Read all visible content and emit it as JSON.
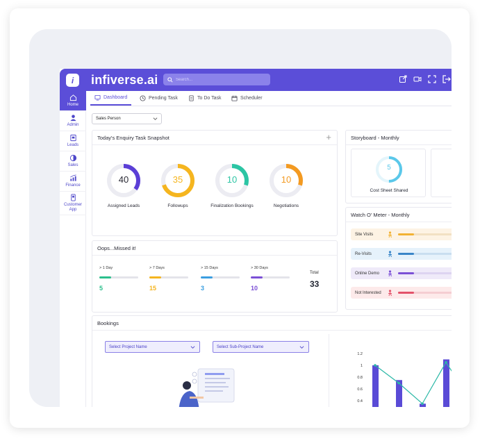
{
  "brand": {
    "name": "infiverse.ai",
    "logo_letter": "i"
  },
  "search": {
    "placeholder": "Search..."
  },
  "top_icons": [
    "external-link-icon",
    "video-icon",
    "expand-icon",
    "logout-icon"
  ],
  "sidebar": {
    "items": [
      {
        "label": "Home",
        "icon": "home-icon",
        "active": true
      },
      {
        "label": "Admin",
        "icon": "admin-icon"
      },
      {
        "label": "Leads",
        "icon": "leads-icon"
      },
      {
        "label": "Sales",
        "icon": "pie-icon"
      },
      {
        "label": "Finance",
        "icon": "finance-icon"
      },
      {
        "label": "Customer App",
        "icon": "phone-icon"
      }
    ]
  },
  "tabs": [
    {
      "label": "Dashboard",
      "active": true
    },
    {
      "label": "Pending Task"
    },
    {
      "label": "To Do Task"
    },
    {
      "label": "Scheduler"
    }
  ],
  "filter": {
    "value": "Sales Person"
  },
  "enquiry": {
    "title": "Today's Enquiry Task Snapshot",
    "add_symbol": "+",
    "items": [
      {
        "value": "40",
        "label": "Assigned Leads",
        "color": "#5b3fd6",
        "fraction": 0.35
      },
      {
        "value": "35",
        "label": "Followups",
        "color": "#f5b51f",
        "fraction": 0.7
      },
      {
        "value": "10",
        "label": "Finalization Bookings",
        "color": "#2cc5a4",
        "fraction": 0.3
      },
      {
        "value": "10",
        "label": "Negotiations",
        "color": "#f39a21",
        "fraction": 0.3
      }
    ]
  },
  "storyboard": {
    "title": "Storyboard - Monthly",
    "items": [
      {
        "value": "5",
        "label": "Cost Sheet Shared",
        "color": "#5bc8ea",
        "fraction": 0.5
      }
    ]
  },
  "missed": {
    "title": "Oops...Missed it!",
    "columns": [
      {
        "label": "> 1 Day",
        "value": "5",
        "color": "#2cbf8c",
        "fraction": 0.3
      },
      {
        "label": "> 7 Days",
        "value": "15",
        "color": "#f5b51f",
        "fraction": 0.3
      },
      {
        "label": "> 15 Days",
        "value": "3",
        "color": "#3a9ee0",
        "fraction": 0.3
      },
      {
        "label": "> 30 Days",
        "value": "10",
        "color": "#7b4fd6",
        "fraction": 0.3
      }
    ],
    "total_label": "Total",
    "total_value": "33"
  },
  "watch": {
    "title": "Watch O' Meter - Monthly",
    "rows": [
      {
        "label": "Site Visits",
        "bg": "#fdf3e4",
        "bar": "#f2e1c3",
        "fill": "#f2b233",
        "fraction": 0.25
      },
      {
        "label": "Re-Visits",
        "bg": "#e6f2fb",
        "bar": "#c9def0",
        "fill": "#3a86c8",
        "fraction": 0.25
      },
      {
        "label": "Online Demo",
        "bg": "#efeaf9",
        "bar": "#ddd4f1",
        "fill": "#7b4fd6",
        "fraction": 0.25
      },
      {
        "label": "Not Interested",
        "bg": "#fdeaea",
        "bar": "#f5cdd2",
        "fill": "#e3526a",
        "fraction": 0.25
      }
    ]
  },
  "bookings": {
    "title": "Bookings",
    "project_placeholder": "Select Project Name",
    "subproject_placeholder": "Select Sub-Project Name"
  },
  "chart_data": {
    "type": "bar",
    "yticks": [
      "1.2",
      "1",
      "0.8",
      "0.6",
      "0.4"
    ],
    "ylim": [
      0.4,
      1.2
    ],
    "bars": [
      1.0,
      0.75,
      0.35,
      1.1
    ],
    "line": [
      1.0,
      0.7,
      0.35,
      1.05,
      0.8
    ],
    "bar_color": "#5a4bd6",
    "line_color": "#2bb8a6"
  }
}
